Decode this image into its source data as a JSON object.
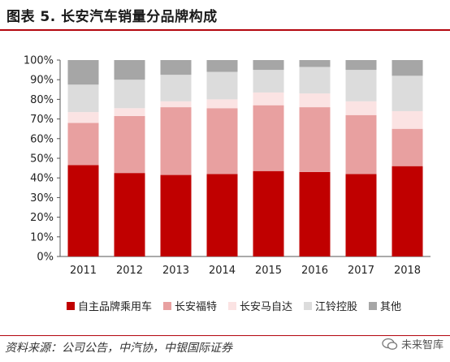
{
  "title": "图表 5. 长安汽车销量分品牌构成",
  "source": "资料来源：公司公告，中汽协，中银国际证券",
  "watermark": "未来智库",
  "chart_data": {
    "type": "bar",
    "stacked": true,
    "categories": [
      "2011",
      "2012",
      "2013",
      "2014",
      "2015",
      "2016",
      "2017",
      "2018"
    ],
    "series": [
      {
        "name": "自主品牌乘用车",
        "color": "#c00000",
        "values": [
          0.465,
          0.425,
          0.415,
          0.42,
          0.435,
          0.43,
          0.42,
          0.46
        ]
      },
      {
        "name": "长安福特",
        "color": "#e8a0a0",
        "values": [
          0.215,
          0.29,
          0.345,
          0.335,
          0.335,
          0.33,
          0.3,
          0.19
        ]
      },
      {
        "name": "长安马自达",
        "color": "#fbe3e3",
        "values": [
          0.055,
          0.04,
          0.03,
          0.045,
          0.065,
          0.07,
          0.07,
          0.09
        ]
      },
      {
        "name": "江铃控股",
        "color": "#dcdcdc",
        "values": [
          0.14,
          0.145,
          0.135,
          0.14,
          0.115,
          0.135,
          0.16,
          0.18
        ]
      },
      {
        "name": "其他",
        "color": "#a6a6a6",
        "values": [
          0.125,
          0.1,
          0.075,
          0.06,
          0.05,
          0.035,
          0.05,
          0.08
        ]
      }
    ],
    "ylim": [
      0,
      1
    ],
    "yticks": [
      "0%",
      "10%",
      "20%",
      "30%",
      "40%",
      "50%",
      "60%",
      "70%",
      "80%",
      "90%",
      "100%"
    ],
    "grid": false,
    "legend_position": "bottom"
  }
}
